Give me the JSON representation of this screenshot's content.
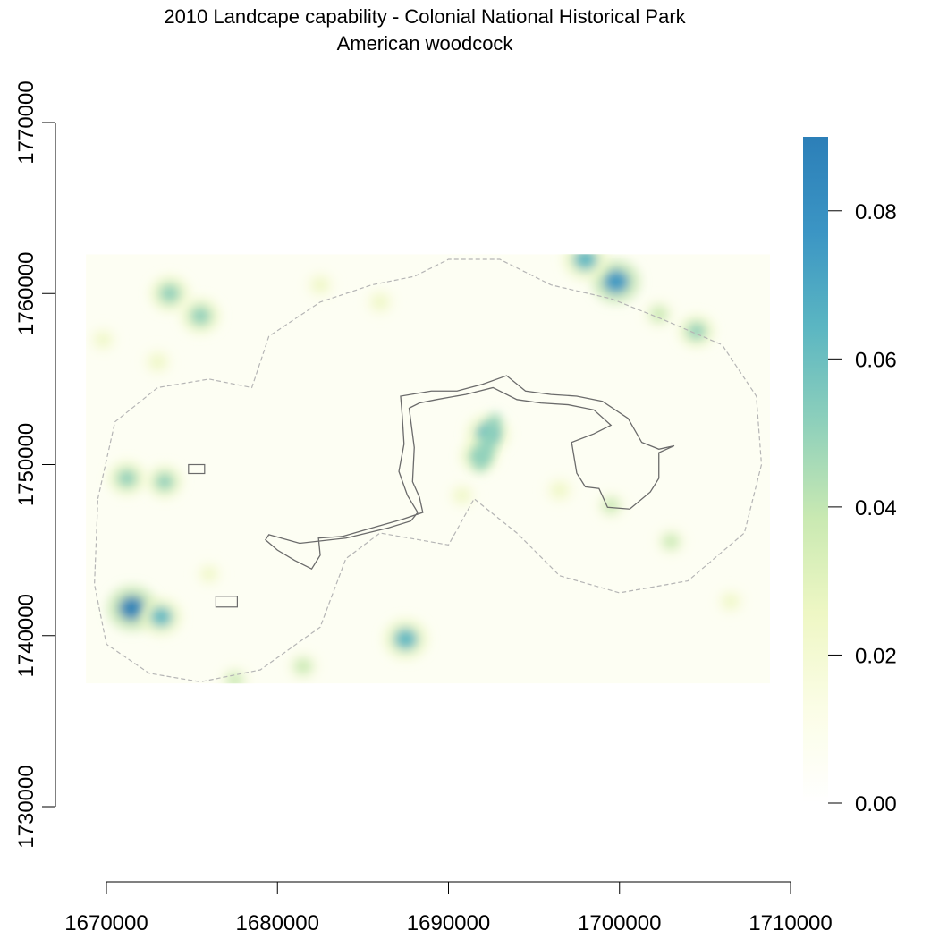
{
  "title": "2010 Landcape capability - Colonial National Historical Park",
  "subtitle": "American woodcock",
  "x_axis": {
    "ticks": [
      1670000,
      1680000,
      1690000,
      1700000,
      1710000
    ],
    "labels": [
      "1670000",
      "1680000",
      "1690000",
      "1700000",
      "1710000"
    ],
    "range": [
      1670000,
      1710000
    ]
  },
  "y_axis": {
    "ticks": [
      1730000,
      1740000,
      1750000,
      1760000,
      1770000
    ],
    "labels": [
      "1730000",
      "1740000",
      "1750000",
      "1760000",
      "1770000"
    ],
    "range": [
      1730000,
      1770000
    ]
  },
  "colorbar": {
    "range": [
      0.0,
      0.09
    ],
    "ticks": [
      0.0,
      0.02,
      0.04,
      0.06,
      0.08
    ],
    "labels": [
      "0.00",
      "0.02",
      "0.04",
      "0.06",
      "0.08"
    ],
    "colors": [
      "#ffffff",
      "#fbfde6",
      "#eef7c4",
      "#c9e9b2",
      "#8ed0bb",
      "#5bb6c2",
      "#3b95c4",
      "#2c7fb8"
    ]
  },
  "raster_extent": {
    "x": [
      1668800,
      1708800
    ],
    "y": [
      1737200,
      1762300
    ]
  },
  "hotspots": [
    {
      "x": 1671500,
      "y": 1741600,
      "v": 0.085
    },
    {
      "x": 1673200,
      "y": 1741100,
      "v": 0.06
    },
    {
      "x": 1687500,
      "y": 1739800,
      "v": 0.07
    },
    {
      "x": 1692300,
      "y": 1751800,
      "v": 0.065
    },
    {
      "x": 1691800,
      "y": 1750500,
      "v": 0.05
    },
    {
      "x": 1699800,
      "y": 1760700,
      "v": 0.08
    },
    {
      "x": 1698000,
      "y": 1762000,
      "v": 0.07
    },
    {
      "x": 1673700,
      "y": 1760000,
      "v": 0.055
    },
    {
      "x": 1675500,
      "y": 1758700,
      "v": 0.055
    },
    {
      "x": 1671200,
      "y": 1749200,
      "v": 0.05
    },
    {
      "x": 1673400,
      "y": 1749000,
      "v": 0.045
    },
    {
      "x": 1704500,
      "y": 1757800,
      "v": 0.045
    },
    {
      "x": 1702300,
      "y": 1758800,
      "v": 0.04
    },
    {
      "x": 1681500,
      "y": 1738200,
      "v": 0.04
    },
    {
      "x": 1703000,
      "y": 1745500,
      "v": 0.035
    },
    {
      "x": 1699500,
      "y": 1747600,
      "v": 0.035
    },
    {
      "x": 1686000,
      "y": 1759500,
      "v": 0.03
    },
    {
      "x": 1682500,
      "y": 1760500,
      "v": 0.03
    },
    {
      "x": 1677500,
      "y": 1737400,
      "v": 0.035
    },
    {
      "x": 1696500,
      "y": 1748500,
      "v": 0.03
    },
    {
      "x": 1706500,
      "y": 1742000,
      "v": 0.025
    },
    {
      "x": 1673000,
      "y": 1756000,
      "v": 0.03
    },
    {
      "x": 1690800,
      "y": 1748200,
      "v": 0.025
    },
    {
      "x": 1676000,
      "y": 1743600,
      "v": 0.02
    },
    {
      "x": 1669800,
      "y": 1757300,
      "v": 0.025
    }
  ],
  "park_boundary": [
    [
      1679500,
      1745900
    ],
    [
      1681300,
      1745400
    ],
    [
      1684000,
      1745700
    ],
    [
      1686500,
      1746300
    ],
    [
      1687800,
      1746700
    ],
    [
      1688200,
      1747200
    ],
    [
      1687600,
      1748200
    ],
    [
      1687100,
      1749600
    ],
    [
      1687400,
      1751200
    ],
    [
      1687300,
      1752800
    ],
    [
      1687200,
      1754000
    ],
    [
      1689000,
      1754300
    ],
    [
      1690500,
      1754300
    ],
    [
      1692000,
      1754700
    ],
    [
      1693400,
      1755200
    ],
    [
      1694500,
      1754300
    ],
    [
      1696000,
      1754100
    ],
    [
      1697500,
      1754000
    ],
    [
      1699000,
      1753700
    ],
    [
      1700500,
      1752700
    ],
    [
      1701300,
      1751300
    ],
    [
      1702300,
      1750900
    ],
    [
      1703200,
      1751100
    ],
    [
      1702300,
      1750700
    ],
    [
      1702300,
      1749200
    ],
    [
      1701800,
      1748400
    ],
    [
      1700600,
      1747400
    ],
    [
      1699300,
      1747500
    ],
    [
      1698800,
      1748600
    ],
    [
      1698000,
      1748700
    ],
    [
      1697500,
      1749500
    ],
    [
      1697200,
      1751300
    ],
    [
      1698500,
      1751800
    ],
    [
      1699500,
      1752300
    ],
    [
      1698500,
      1753200
    ],
    [
      1697000,
      1753500
    ],
    [
      1695400,
      1753600
    ],
    [
      1694000,
      1753800
    ],
    [
      1692600,
      1754500
    ],
    [
      1691000,
      1754100
    ],
    [
      1689300,
      1753800
    ],
    [
      1688300,
      1753600
    ],
    [
      1687700,
      1753300
    ],
    [
      1688000,
      1751000
    ],
    [
      1687900,
      1749000
    ],
    [
      1688300,
      1748100
    ],
    [
      1688500,
      1747200
    ],
    [
      1687300,
      1746800
    ],
    [
      1685200,
      1746200
    ],
    [
      1683800,
      1745800
    ],
    [
      1682400,
      1745700
    ],
    [
      1682500,
      1744700
    ],
    [
      1682000,
      1743900
    ],
    [
      1681000,
      1744400
    ],
    [
      1680000,
      1745000
    ],
    [
      1679300,
      1745600
    ],
    [
      1679500,
      1745900
    ]
  ],
  "buffer_boundary": [
    [
      1669500,
      1748000
    ],
    [
      1670500,
      1752500
    ],
    [
      1673000,
      1754500
    ],
    [
      1676000,
      1755000
    ],
    [
      1678500,
      1754500
    ],
    [
      1679500,
      1757500
    ],
    [
      1682500,
      1759500
    ],
    [
      1685500,
      1760500
    ],
    [
      1688000,
      1761000
    ],
    [
      1690000,
      1762000
    ],
    [
      1693000,
      1762000
    ],
    [
      1696000,
      1760500
    ],
    [
      1699500,
      1759700
    ],
    [
      1702500,
      1758500
    ],
    [
      1706000,
      1757000
    ],
    [
      1708000,
      1754000
    ],
    [
      1708300,
      1750000
    ],
    [
      1707300,
      1746000
    ],
    [
      1704000,
      1743200
    ],
    [
      1700000,
      1742500
    ],
    [
      1696500,
      1743500
    ],
    [
      1694000,
      1746000
    ],
    [
      1691500,
      1748000
    ],
    [
      1690000,
      1745300
    ],
    [
      1686000,
      1746000
    ],
    [
      1684000,
      1744500
    ],
    [
      1682500,
      1740500
    ],
    [
      1679000,
      1738000
    ],
    [
      1675500,
      1737300
    ],
    [
      1672500,
      1737800
    ],
    [
      1670000,
      1739500
    ],
    [
      1669300,
      1743000
    ],
    [
      1669500,
      1748000
    ]
  ]
}
